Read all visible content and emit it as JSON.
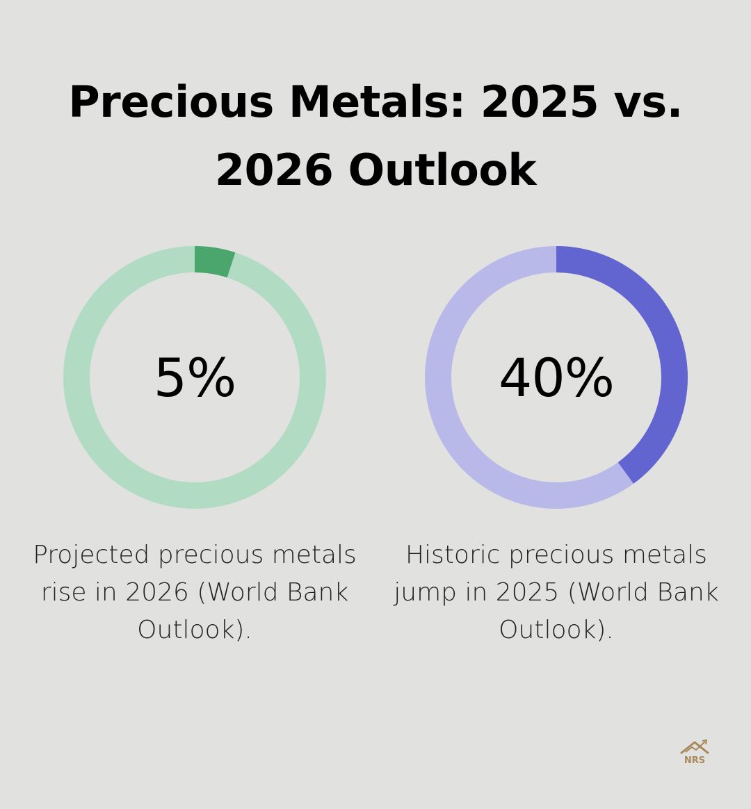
{
  "title_line1": "Precious Metals: 2025 vs.",
  "title_line2": "2026 Outlook",
  "chart_data": [
    {
      "type": "pie",
      "value": 5,
      "label": "5%",
      "caption_lines": [
        "Projected precious metals",
        "rise in 2026 (World Bank",
        "Outlook)."
      ],
      "color": "#4aa66c",
      "track_color": "#b1dcc3"
    },
    {
      "type": "pie",
      "value": 40,
      "label": "40%",
      "caption_lines": [
        "Historic precious metals",
        "jump in 2025 (World Bank",
        "Outlook)."
      ],
      "color": "#6264d0",
      "track_color": "#b8b9e9"
    }
  ],
  "logo": {
    "text": "NRS",
    "icon": "house-chart-icon",
    "color": "#a9895a"
  }
}
